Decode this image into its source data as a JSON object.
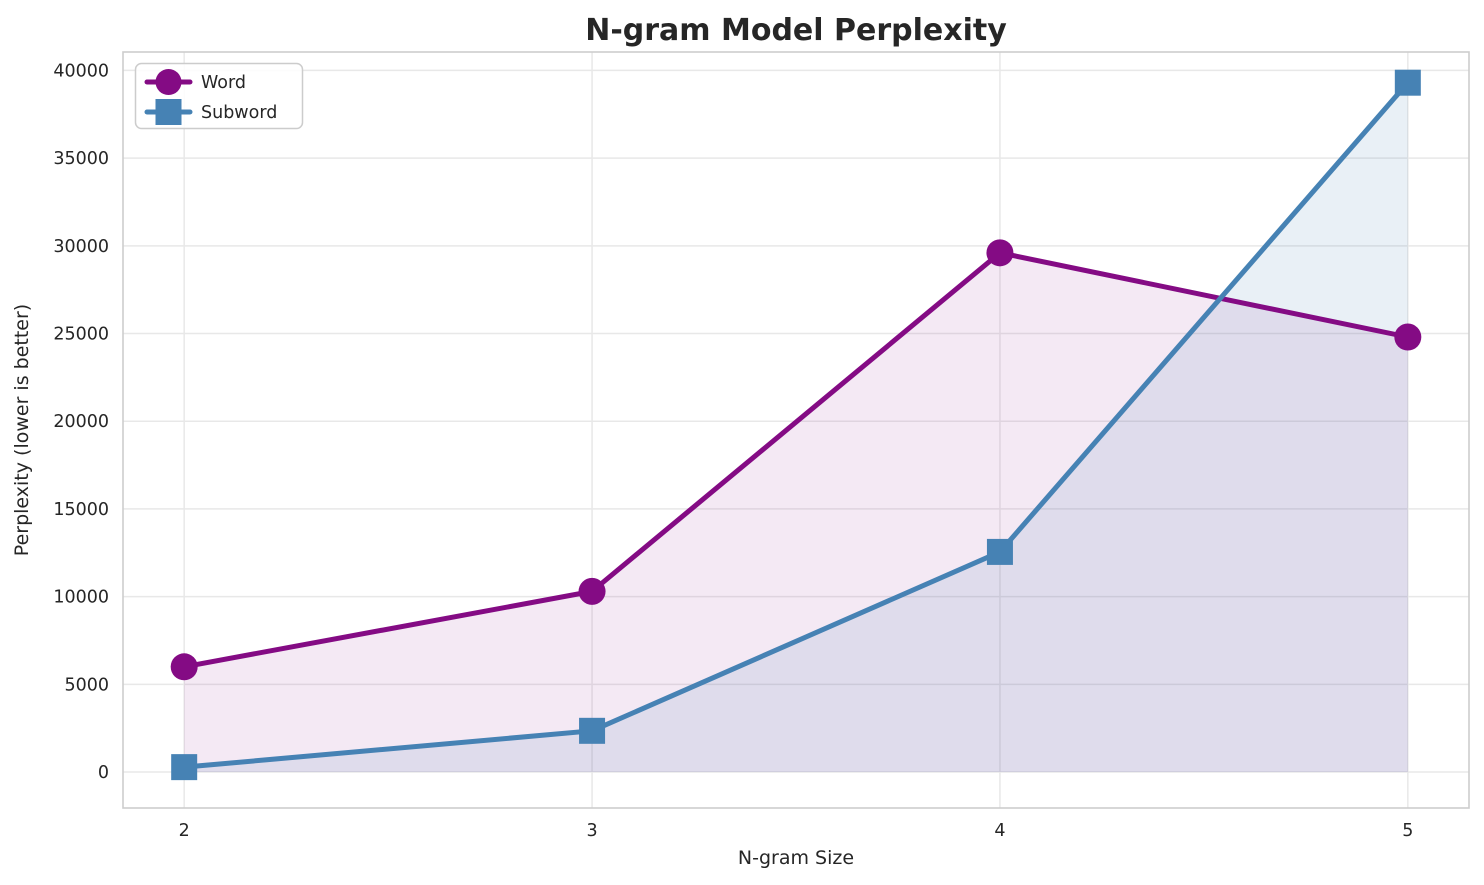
{
  "chart_data": {
    "type": "line",
    "title": "N-gram Model Perplexity",
    "xlabel": "N-gram Size",
    "ylabel": "Perplexity (lower is better)",
    "x": [
      2,
      3,
      4,
      5
    ],
    "series": [
      {
        "name": "Word",
        "marker": "circle",
        "color": "#840b84",
        "fill_alpha": 0.09,
        "values": [
          6000,
          10300,
          29600,
          24800
        ]
      },
      {
        "name": "Subword",
        "marker": "square",
        "color": "#4682b4",
        "fill_alpha": 0.12,
        "values": [
          280,
          2350,
          12550,
          39300
        ]
      }
    ],
    "xticks": [
      2,
      3,
      4,
      5
    ],
    "yticks": [
      0,
      5000,
      10000,
      15000,
      20000,
      25000,
      30000,
      35000,
      40000
    ],
    "xlim": [
      1.85,
      5.15
    ],
    "ylim": [
      -2050,
      41050
    ],
    "grid": true,
    "area_fill_baseline": 0,
    "legend_position": "upper left"
  },
  "styles": {
    "background": "#ffffff",
    "grid_color": "#e8e8e8",
    "spine_color": "#cdcdcd",
    "text_color": "#262626",
    "legend_border": "#cccccc",
    "legend_background": "#ffffff"
  }
}
